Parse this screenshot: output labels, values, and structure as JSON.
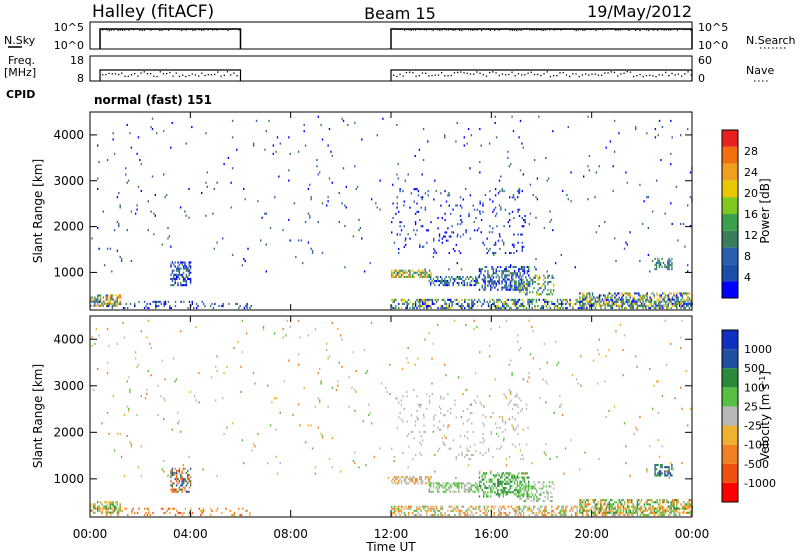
{
  "header": {
    "radar": "Halley (fitACF)",
    "beam": "Beam 15",
    "date": "19/May/2012"
  },
  "nsky_panel": {
    "left_label": "N.Sky",
    "left_ticks": [
      "10^5",
      "10^0"
    ],
    "right_label": "N.Search",
    "right_ticks": [
      "10^5",
      "10^0"
    ]
  },
  "freq_panel": {
    "left_label_1": "Freq.",
    "left_label_2": "[MHz]",
    "left_ticks": [
      "18",
      "8"
    ],
    "right_label": "Nave",
    "right_ticks": [
      "60",
      "0"
    ]
  },
  "cpid": {
    "label": "CPID",
    "mode": "normal (fast) 151"
  },
  "time_axis": {
    "label": "Time UT",
    "ticks": [
      "00:00",
      "04:00",
      "08:00",
      "12:00",
      "16:00",
      "20:00",
      "00:00"
    ]
  },
  "colors": {
    "power": [
      "#0000ff",
      "#1d4fa8",
      "#2b5fb0",
      "#3a7d5a",
      "#3aa04a",
      "#7ec820",
      "#e8c800",
      "#f0a020",
      "#f07010",
      "#e82020"
    ],
    "velocity": [
      "#ff0000",
      "#f05010",
      "#f08020",
      "#f0b030",
      "#b8b8b8",
      "#58c040",
      "#2a8a3a",
      "#2050a0",
      "#1030c0"
    ]
  },
  "chart_data": [
    {
      "type": "line",
      "title": "N.Sky / N.Search",
      "x_range_hours": [
        0,
        24
      ],
      "segments": [
        {
          "x_start_hours": 0.4,
          "x_end_hours": 6.0,
          "level": "10^5"
        },
        {
          "x_start_hours": 12.0,
          "x_end_hours": 24.0,
          "level": "10^5"
        }
      ]
    },
    {
      "type": "line",
      "title": "Freq. / Nave",
      "x_range_hours": [
        0,
        24
      ],
      "ylim_freq_mhz": [
        8,
        18
      ],
      "ylim_nave": [
        0,
        60
      ],
      "segments": [
        {
          "x_start_hours": 0.4,
          "x_end_hours": 6.0,
          "freq_mhz": 12
        },
        {
          "x_start_hours": 12.0,
          "x_end_hours": 24.0,
          "freq_mhz": 12
        }
      ]
    },
    {
      "type": "heatmap",
      "title": "Power",
      "xlabel": "Time UT",
      "ylabel": "Slant Range [km]",
      "colorbar_label": "Power [dB]",
      "colorbar_ticks": [
        "28",
        "24",
        "20",
        "16",
        "12",
        "8",
        "4"
      ],
      "y_ticks": [
        "4000",
        "3000",
        "2000",
        "1000"
      ],
      "xlim_hours": [
        0,
        24
      ],
      "ylim_km": [
        180,
        4500
      ],
      "clusters": [
        {
          "t0": 0.0,
          "t1": 1.2,
          "r0": 250,
          "r1": 520,
          "density": 0.55,
          "values": [
            8,
            12,
            16,
            20,
            24,
            28
          ]
        },
        {
          "t0": 0.3,
          "t1": 6.5,
          "r0": 200,
          "r1": 380,
          "density": 0.18,
          "values": [
            4,
            8,
            12
          ]
        },
        {
          "t0": 3.2,
          "t1": 4.0,
          "r0": 700,
          "r1": 1200,
          "density": 0.5,
          "values": [
            4,
            8,
            12
          ]
        },
        {
          "t0": 12.0,
          "t1": 24.0,
          "r0": 200,
          "r1": 420,
          "density": 0.45,
          "values": [
            4,
            8,
            12,
            16,
            20
          ]
        },
        {
          "t0": 12.0,
          "t1": 13.6,
          "r0": 880,
          "r1": 1050,
          "density": 0.6,
          "values": [
            12,
            16,
            20,
            24
          ]
        },
        {
          "t0": 13.5,
          "t1": 15.5,
          "r0": 700,
          "r1": 900,
          "density": 0.5,
          "values": [
            4,
            8,
            12,
            16
          ]
        },
        {
          "t0": 15.5,
          "t1": 17.5,
          "r0": 600,
          "r1": 1100,
          "density": 0.45,
          "values": [
            4,
            8,
            12
          ]
        },
        {
          "t0": 17.0,
          "t1": 18.5,
          "r0": 500,
          "r1": 950,
          "density": 0.3,
          "values": [
            8,
            12,
            16,
            20
          ]
        },
        {
          "t0": 19.5,
          "t1": 24.0,
          "r0": 250,
          "r1": 550,
          "density": 0.5,
          "values": [
            4,
            8,
            12,
            16,
            20,
            24
          ]
        },
        {
          "t0": 22.5,
          "t1": 23.2,
          "r0": 1050,
          "r1": 1300,
          "density": 0.5,
          "values": [
            8,
            12,
            16
          ]
        },
        {
          "t0": 12.0,
          "t1": 17.5,
          "r0": 1400,
          "r1": 2800,
          "density": 0.06,
          "values": [
            4,
            8
          ]
        },
        {
          "t0": 0.0,
          "t1": 24.0,
          "r0": 1000,
          "r1": 4400,
          "density": 0.012,
          "values": [
            4,
            8,
            12
          ]
        }
      ]
    },
    {
      "type": "heatmap",
      "title": "Velocity",
      "xlabel": "Time UT",
      "ylabel": "Slant Range [km]",
      "colorbar_label": "Velocity [m s^-1]",
      "colorbar_ticks": [
        "1000",
        "500",
        "100",
        "25",
        "-25",
        "-100",
        "-500",
        "-1000"
      ],
      "y_ticks": [
        "4000",
        "3000",
        "2000",
        "1000"
      ],
      "xlim_hours": [
        0,
        24
      ],
      "ylim_km": [
        180,
        4500
      ],
      "clusters": [
        {
          "t0": 0.0,
          "t1": 1.2,
          "r0": 250,
          "r1": 520,
          "density": 0.55,
          "values": [
            -100,
            -25,
            100,
            500
          ]
        },
        {
          "t0": 0.3,
          "t1": 6.5,
          "r0": 200,
          "r1": 380,
          "density": 0.18,
          "values": [
            -100,
            -500,
            -25
          ]
        },
        {
          "t0": 3.2,
          "t1": 4.0,
          "r0": 700,
          "r1": 1200,
          "density": 0.5,
          "values": [
            -500,
            -100,
            1000,
            500
          ]
        },
        {
          "t0": 12.0,
          "t1": 24.0,
          "r0": 200,
          "r1": 420,
          "density": 0.45,
          "values": [
            -100,
            -25,
            25,
            100
          ]
        },
        {
          "t0": 12.0,
          "t1": 13.6,
          "r0": 880,
          "r1": 1050,
          "density": 0.6,
          "values": [
            -100,
            -25,
            25
          ]
        },
        {
          "t0": 13.5,
          "t1": 15.5,
          "r0": 700,
          "r1": 900,
          "density": 0.5,
          "values": [
            25,
            100
          ]
        },
        {
          "t0": 15.5,
          "t1": 17.5,
          "r0": 600,
          "r1": 1100,
          "density": 0.45,
          "values": [
            100,
            500
          ]
        },
        {
          "t0": 17.0,
          "t1": 18.5,
          "r0": 500,
          "r1": 950,
          "density": 0.3,
          "values": [
            25,
            100
          ]
        },
        {
          "t0": 19.5,
          "t1": 24.0,
          "r0": 250,
          "r1": 550,
          "density": 0.5,
          "values": [
            100,
            500,
            -25,
            -100
          ]
        },
        {
          "t0": 22.5,
          "t1": 23.2,
          "r0": 1050,
          "r1": 1300,
          "density": 0.5,
          "values": [
            500,
            1000
          ]
        },
        {
          "t0": 12.0,
          "t1": 17.5,
          "r0": 1400,
          "r1": 2800,
          "density": 0.06,
          "values": [
            25
          ]
        },
        {
          "t0": 0.0,
          "t1": 24.0,
          "r0": 1000,
          "r1": 4400,
          "density": 0.012,
          "values": [
            -100,
            -25,
            25,
            100
          ]
        }
      ]
    }
  ]
}
